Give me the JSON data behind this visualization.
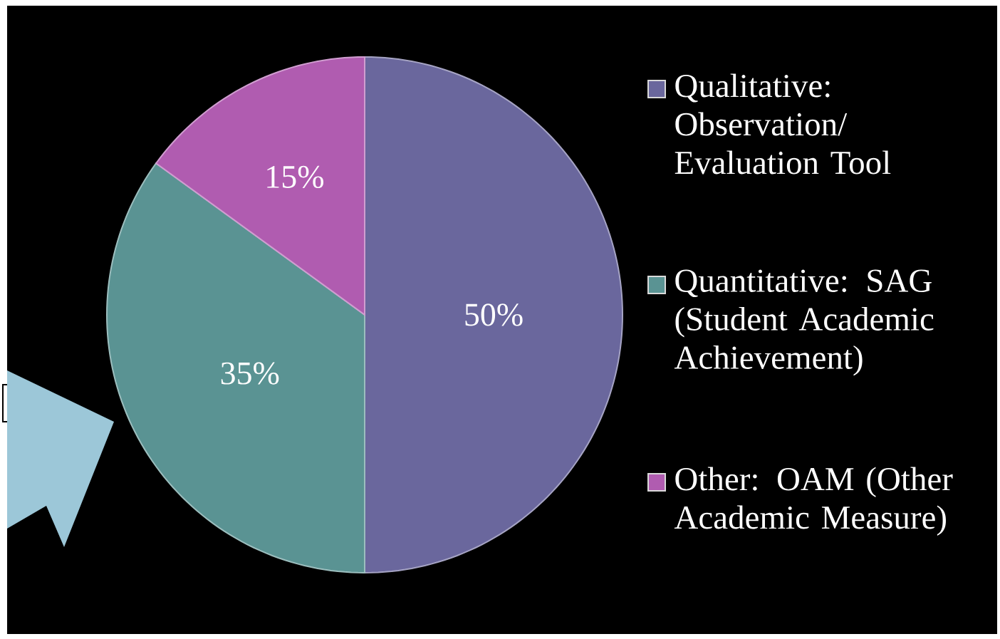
{
  "chart_data": {
    "type": "pie",
    "categories": [
      "Qualitative: Observation/ Evaluation Tool",
      "Quantitative: SAG (Student Academic Achievement)",
      "Other:  OAM (Other Academic Measure)"
    ],
    "values": [
      50,
      35,
      15
    ],
    "colors": [
      "#6a679d",
      "#5a9393",
      "#b05cb0"
    ],
    "value_labels": [
      "50%",
      "35%",
      "15%"
    ],
    "legend": "right"
  }
}
